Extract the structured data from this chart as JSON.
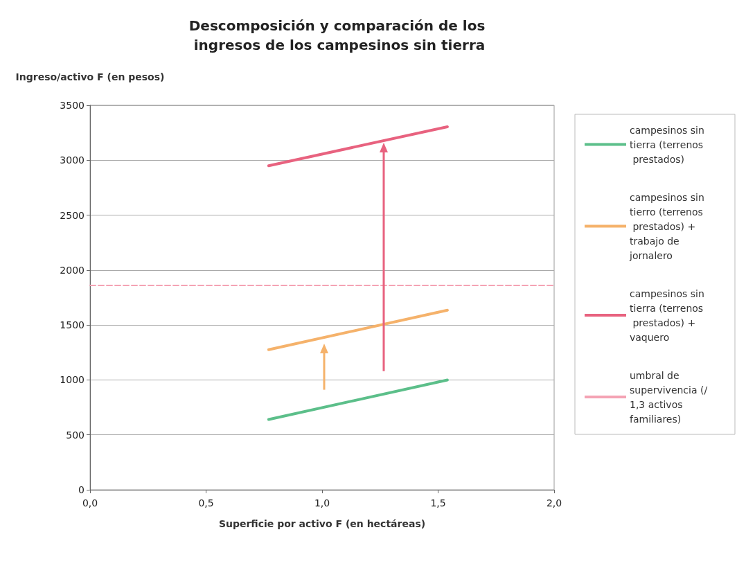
{
  "chart_data": {
    "type": "line",
    "title": "Descomposición y comparación de los ingresos de los campesinos sin tierra",
    "xlabel": "Superficie por activo F (en hectáreas)",
    "ylabel": "Ingreso/activo F (en pesos)",
    "series": [
      {
        "name": "campesinos sin tierra (terrenos prestados)",
        "color": "#5cbf8a",
        "x": [
          0.77,
          1.54
        ],
        "values": [
          640,
          1000
        ]
      },
      {
        "name": "campesinos sin tierro (terrenos prestados) + trabajo de jornalero",
        "color": "#f5b26b",
        "x": [
          0.77,
          1.54
        ],
        "values": [
          1275,
          1635
        ]
      },
      {
        "name": "campesinos sin tierra (terrenos prestados) + vaquero",
        "color": "#e8627f",
        "x": [
          0.77,
          1.54
        ],
        "values": [
          2950,
          3305
        ]
      },
      {
        "name": "umbral de supervivencia (/1,3 activos familiares)",
        "color": "#f4a3b4",
        "x": [
          0,
          2
        ],
        "values": [
          1860,
          1860
        ],
        "line_style": "dashed"
      }
    ],
    "xlim": [
      0,
      2
    ],
    "xticks": [
      {
        "value": 0,
        "label": "0,0"
      },
      {
        "value": 0.5,
        "label": "0,5"
      },
      {
        "value": 1,
        "label": "1,0"
      },
      {
        "value": 1.5,
        "label": "1,5"
      },
      {
        "value": 2,
        "label": "2,0"
      }
    ],
    "ylim": [
      0,
      3500
    ],
    "yticks": [
      0,
      500,
      1000,
      1500,
      2000,
      2500,
      3000,
      3500
    ],
    "grid": "y",
    "legend": "right",
    "marker": "none"
  }
}
